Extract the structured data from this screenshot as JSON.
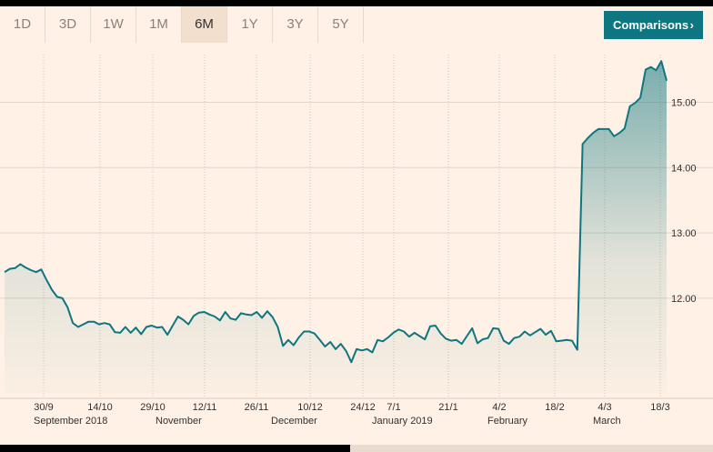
{
  "tabs": [
    {
      "label": "1D",
      "active": false
    },
    {
      "label": "3D",
      "active": false
    },
    {
      "label": "1W",
      "active": false
    },
    {
      "label": "1M",
      "active": false
    },
    {
      "label": "6M",
      "active": true
    },
    {
      "label": "1Y",
      "active": false
    },
    {
      "label": "3Y",
      "active": false
    },
    {
      "label": "5Y",
      "active": false
    }
  ],
  "comparisons": {
    "label": "Comparisons",
    "icon": "chevron-right-icon",
    "chevron": "›"
  },
  "colors": {
    "line": "#0d7680",
    "button": "#0d7680",
    "background": "#fff1e5",
    "active_tab": "#f2dfce"
  },
  "chart_data": {
    "type": "area",
    "x_ticks": [
      "30/9",
      "14/10",
      "29/10",
      "12/11",
      "26/11",
      "10/12",
      "24/12",
      "7/1",
      "21/1",
      "4/2",
      "18/2",
      "4/3",
      "18/3"
    ],
    "months": [
      "September 2018",
      "November",
      "December",
      "January 2019",
      "February",
      "March"
    ],
    "y_ticks": [
      "12.00",
      "13.00",
      "14.00",
      "15.00"
    ],
    "ylim": [
      10.55,
      15.8
    ],
    "y_axis_position": "right",
    "grid": true,
    "series": [
      {
        "values": [
          12.4,
          12.45,
          12.46,
          12.52,
          12.47,
          12.43,
          12.4,
          12.44,
          12.28,
          12.13,
          12.02,
          12.0,
          11.86,
          11.62,
          11.56,
          11.6,
          11.64,
          11.64,
          11.6,
          11.62,
          11.6,
          11.48,
          11.47,
          11.56,
          11.47,
          11.55,
          11.45,
          11.56,
          11.58,
          11.55,
          11.56,
          11.44,
          11.58,
          11.72,
          11.67,
          11.6,
          11.73,
          11.78,
          11.79,
          11.75,
          11.72,
          11.66,
          11.79,
          11.69,
          11.67,
          11.77,
          11.75,
          11.74,
          11.79,
          11.7,
          11.8,
          11.71,
          11.56,
          11.27,
          11.36,
          11.28,
          11.4,
          11.49,
          11.49,
          11.46,
          11.36,
          11.26,
          11.33,
          11.22,
          11.3,
          11.19,
          11.02,
          11.22,
          11.2,
          11.22,
          11.17,
          11.36,
          11.34,
          11.4,
          11.47,
          11.52,
          11.49,
          11.41,
          11.47,
          11.42,
          11.37,
          11.57,
          11.58,
          11.46,
          11.38,
          11.35,
          11.36,
          11.3,
          11.42,
          11.54,
          11.31,
          11.37,
          11.39,
          11.54,
          11.53,
          11.35,
          11.3,
          11.39,
          11.41,
          11.49,
          11.43,
          11.48,
          11.53,
          11.44,
          11.5,
          11.34,
          11.35,
          11.36,
          11.35,
          11.21,
          14.36,
          14.45,
          14.53,
          14.59,
          14.59,
          14.59,
          14.48,
          14.53,
          14.6,
          14.94,
          14.99,
          15.07,
          15.5,
          15.54,
          15.49,
          15.63,
          15.33
        ]
      }
    ]
  }
}
